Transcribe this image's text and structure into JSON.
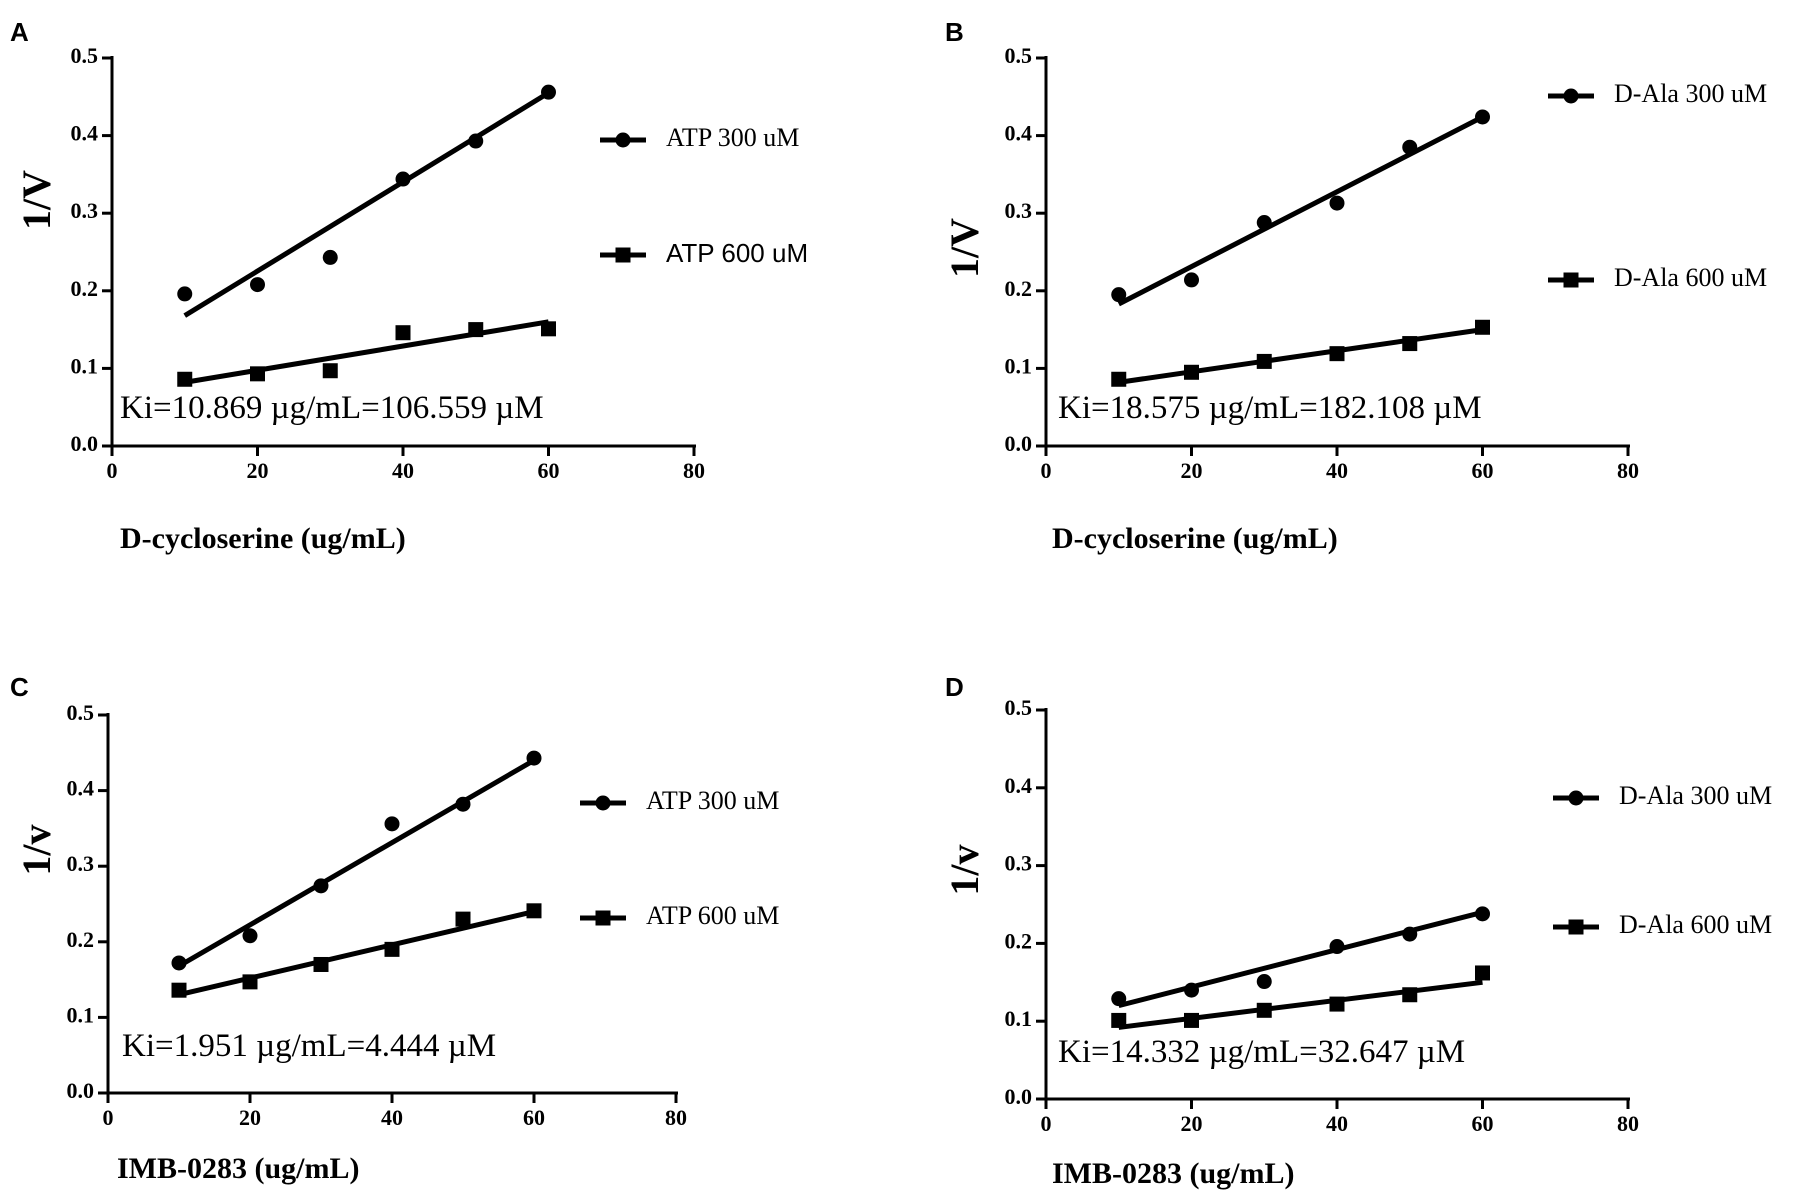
{
  "chart_data": [
    {
      "type": "scatter",
      "panel_label": "A",
      "title": "",
      "xlabel": "D-cycloserine (ug/mL)",
      "ylabel": "1/V",
      "xlim": [
        0,
        80
      ],
      "ylim": [
        0,
        0.5
      ],
      "x_ticks": [
        "0",
        "20",
        "40",
        "60",
        "80"
      ],
      "y_ticks": [
        "0.0",
        "0.1",
        "0.2",
        "0.3",
        "0.4",
        "0.5"
      ],
      "annotation": "Ki=10.869 µg/mL=106.559 µM",
      "legend_position": "right",
      "series": [
        {
          "name": "ATP 300 uM",
          "marker": "circle",
          "x": [
            10,
            20,
            30,
            40,
            50,
            60
          ],
          "y": [
            0.196,
            0.208,
            0.243,
            0.344,
            0.393,
            0.456
          ],
          "fit": [
            0.168,
            0.455
          ]
        },
        {
          "name": "ATP 600 uM",
          "marker": "square",
          "x": [
            10,
            20,
            30,
            40,
            50,
            60
          ],
          "y": [
            0.086,
            0.093,
            0.097,
            0.146,
            0.15,
            0.151
          ],
          "fit": [
            0.082,
            0.16
          ]
        }
      ]
    },
    {
      "type": "scatter",
      "panel_label": "B",
      "title": "",
      "xlabel": "D-cycloserine (ug/mL)",
      "ylabel": "1/V",
      "xlim": [
        0,
        80
      ],
      "ylim": [
        0,
        0.5
      ],
      "x_ticks": [
        "0",
        "20",
        "40",
        "60",
        "80"
      ],
      "y_ticks": [
        "0.0",
        "0.1",
        "0.2",
        "0.3",
        "0.4",
        "0.5"
      ],
      "annotation": "Ki=18.575 µg/mL=182.108 µM",
      "legend_position": "right",
      "series": [
        {
          "name": "D-Ala 300 uM",
          "marker": "circle",
          "x": [
            10,
            20,
            30,
            40,
            50,
            60
          ],
          "y": [
            0.195,
            0.214,
            0.288,
            0.313,
            0.385,
            0.424
          ],
          "fit": [
            0.183,
            0.424
          ]
        },
        {
          "name": "D-Ala 600 uM",
          "marker": "square",
          "x": [
            10,
            20,
            30,
            40,
            50,
            60
          ],
          "y": [
            0.086,
            0.095,
            0.109,
            0.119,
            0.132,
            0.153
          ],
          "fit": [
            0.082,
            0.15
          ]
        }
      ]
    },
    {
      "type": "scatter",
      "panel_label": "C",
      "title": "",
      "xlabel": "IMB-0283 (ug/mL)",
      "ylabel": "1/v",
      "xlim": [
        0,
        80
      ],
      "ylim": [
        0,
        0.5
      ],
      "x_ticks": [
        "0",
        "20",
        "40",
        "60",
        "80"
      ],
      "y_ticks": [
        "0.0",
        "0.1",
        "0.2",
        "0.3",
        "0.4",
        "0.5"
      ],
      "annotation": "Ki=1.951 µg/mL=4.444 µM",
      "legend_position": "right",
      "series": [
        {
          "name": "ATP 300 uM",
          "marker": "circle",
          "x": [
            10,
            20,
            30,
            40,
            50,
            60
          ],
          "y": [
            0.172,
            0.208,
            0.274,
            0.356,
            0.382,
            0.443
          ],
          "fit": [
            0.168,
            0.44
          ]
        },
        {
          "name": "ATP 600 uM",
          "marker": "square",
          "x": [
            10,
            20,
            30,
            40,
            50,
            60
          ],
          "y": [
            0.136,
            0.147,
            0.17,
            0.19,
            0.23,
            0.241
          ],
          "fit": [
            0.13,
            0.24
          ]
        }
      ]
    },
    {
      "type": "scatter",
      "panel_label": "D",
      "title": "",
      "xlabel": "IMB-0283 (ug/mL)",
      "ylabel": "1/v",
      "xlim": [
        0,
        80
      ],
      "ylim": [
        0,
        0.5
      ],
      "x_ticks": [
        "0",
        "20",
        "40",
        "60",
        "80"
      ],
      "y_ticks": [
        "0.0",
        "0.1",
        "0.2",
        "0.3",
        "0.4",
        "0.5"
      ],
      "annotation": "Ki=14.332 µg/mL=32.647 µM",
      "legend_position": "right",
      "series": [
        {
          "name": "D-Ala 300 uM",
          "marker": "circle",
          "x": [
            10,
            20,
            30,
            40,
            50,
            60
          ],
          "y": [
            0.129,
            0.14,
            0.151,
            0.196,
            0.212,
            0.238
          ],
          "fit": [
            0.12,
            0.24
          ]
        },
        {
          "name": "D-Ala 600 uM",
          "marker": "square",
          "x": [
            10,
            20,
            30,
            40,
            50,
            60
          ],
          "y": [
            0.101,
            0.101,
            0.114,
            0.122,
            0.134,
            0.162
          ],
          "fit": [
            0.092,
            0.15
          ]
        }
      ]
    }
  ]
}
